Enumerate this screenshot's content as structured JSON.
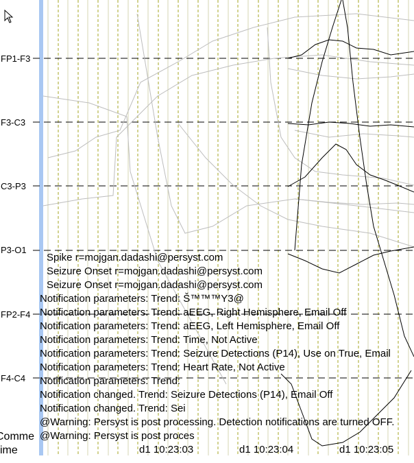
{
  "channels": [
    {
      "label": "FP1-F3"
    },
    {
      "label": "F3-C3"
    },
    {
      "label": "C3-P3"
    },
    {
      "label": "P3-O1"
    },
    {
      "label": "FP2-F4"
    },
    {
      "label": "F4-C4"
    }
  ],
  "log": [
    "Spike r=mojgan.dadashi@persyst.com",
    "Seizure Onset r=mojgan.dadashi@persyst.com",
    "Seizure Onset r=mojgan.dadashi@persyst.com",
    "Notification parameters: Trend: Š™™™Y3@",
    "Notification parameters: Trend: aEEG, Right Hemisphere, Email Off",
    "Notification parameters: Trend: aEEG, Left Hemisphere, Email Off",
    "Notification parameters: Trend: Time, Not Active",
    "Notification parameters: Trend: Seizure Detections (P14), Use on True, Email",
    "Notification parameters: Trend: Heart Rate, Not Active",
    "Notification parameters: Trend:",
    "Notification changed. Trend: Seizure Detections (P14), Email Off",
    "Notification changed. Trend: Sei",
    "@Warning: Persyst is post processing. Detection notifications are turned OFF.",
    "@Warning: Persyst is post proces"
  ],
  "time_labels": [
    "d1 10:23:03",
    "d1 10:23:04",
    "d1 10:23:05"
  ],
  "bottom_left": {
    "comment": "Comme",
    "time": "ime"
  },
  "colors": {
    "left_bar": "#a9c8f2",
    "grid_solid": "#d4d4b0",
    "grid_dashed": "#a6a620",
    "trace_dark": "#000000",
    "trace_light": "#bdbdbd"
  },
  "icons": {
    "cursor": "mouse-pointer-icon"
  }
}
